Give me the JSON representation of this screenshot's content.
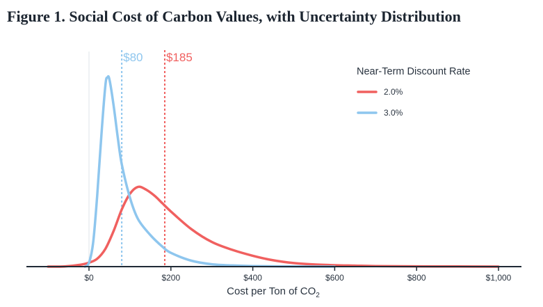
{
  "title": "Figure 1. Social Cost of Carbon Values, with Uncertainty Distribution",
  "chart_data": {
    "type": "line",
    "title": "Figure 1. Social Cost of Carbon Values, with Uncertainty Distribution",
    "xlabel": "Cost per Ton of CO",
    "xlabel_subscript": "2",
    "ylabel": "",
    "xlim": [
      -100,
      1050
    ],
    "ylim": [
      0,
      1
    ],
    "grid": false,
    "x_ticks": [
      0,
      200,
      400,
      600,
      800,
      1000
    ],
    "x_tick_labels": [
      "$0",
      "$200",
      "$400",
      "$600",
      "$800",
      "$1,000"
    ],
    "legend": {
      "title": "Near-Term Discount Rate",
      "position": "top-right"
    },
    "series": [
      {
        "name": "2.0%",
        "color": "#f0605f",
        "points": [
          [
            -100,
            0
          ],
          [
            -60,
            0.001
          ],
          [
            -20,
            0.01
          ],
          [
            0,
            0.02
          ],
          [
            20,
            0.04
          ],
          [
            40,
            0.09
          ],
          [
            60,
            0.18
          ],
          [
            80,
            0.29
          ],
          [
            100,
            0.37
          ],
          [
            120,
            0.405
          ],
          [
            140,
            0.39
          ],
          [
            160,
            0.36
          ],
          [
            180,
            0.32
          ],
          [
            200,
            0.28
          ],
          [
            250,
            0.19
          ],
          [
            300,
            0.125
          ],
          [
            350,
            0.085
          ],
          [
            400,
            0.055
          ],
          [
            450,
            0.032
          ],
          [
            500,
            0.018
          ],
          [
            550,
            0.011
          ],
          [
            600,
            0.007
          ],
          [
            650,
            0.005
          ],
          [
            700,
            0.003
          ],
          [
            800,
            0.0015
          ],
          [
            900,
            0.0007
          ],
          [
            1000,
            0
          ]
        ]
      },
      {
        "name": "3.0%",
        "color": "#8ec6ee",
        "points": [
          [
            -10,
            0
          ],
          [
            0,
            0.02
          ],
          [
            10,
            0.12
          ],
          [
            20,
            0.36
          ],
          [
            30,
            0.66
          ],
          [
            40,
            0.92
          ],
          [
            45,
            0.96
          ],
          [
            50,
            0.95
          ],
          [
            60,
            0.82
          ],
          [
            70,
            0.66
          ],
          [
            80,
            0.52
          ],
          [
            100,
            0.35
          ],
          [
            120,
            0.24
          ],
          [
            150,
            0.16
          ],
          [
            180,
            0.1
          ],
          [
            200,
            0.07
          ],
          [
            250,
            0.03
          ],
          [
            300,
            0.012
          ],
          [
            350,
            0.006
          ],
          [
            400,
            0.003
          ],
          [
            500,
            0.001
          ],
          [
            600,
            0
          ]
        ]
      }
    ],
    "annotations": [
      {
        "label": "$80",
        "value": 80,
        "series": "3.0%",
        "color": "#8ec6ee"
      },
      {
        "label": "$185",
        "value": 185,
        "series": "2.0%",
        "color": "#f0605f"
      }
    ]
  }
}
